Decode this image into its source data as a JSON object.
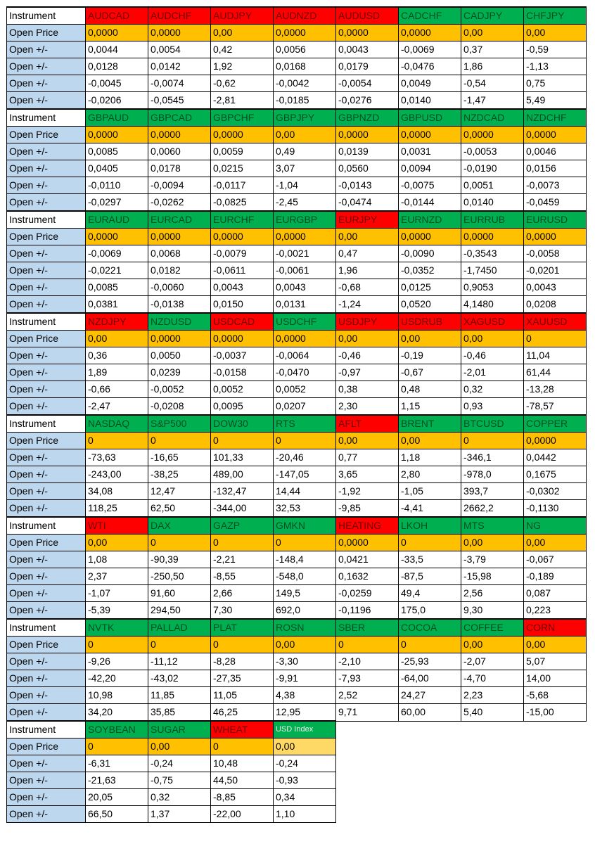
{
  "table": {
    "row_labels": {
      "instrument": "Instrument",
      "open_price": "Open Price",
      "open_change": "Open +/-"
    },
    "colors": {
      "up_fill": "#00B050",
      "down_fill": "#FF0000",
      "price_fill": "#FFC000",
      "price_fill_light": "#FFD966",
      "label_fill": "#BDD7EE",
      "border": "#000000"
    },
    "blocks": [
      {
        "instruments": [
          {
            "name": "AUDCAD",
            "trend": "down"
          },
          {
            "name": "AUDCHF",
            "trend": "down"
          },
          {
            "name": "AUDJPY",
            "trend": "down"
          },
          {
            "name": "AUDNZD",
            "trend": "down"
          },
          {
            "name": "AUDUSD",
            "trend": "down"
          },
          {
            "name": "CADCHF",
            "trend": "up"
          },
          {
            "name": "CADJPY",
            "trend": "up"
          },
          {
            "name": "CHFJPY",
            "trend": "up"
          }
        ],
        "open_prices": [
          "0,0000",
          "0,0000",
          "0,00",
          "0,0000",
          "0,0000",
          "0,0000",
          "0,00",
          "0,00"
        ],
        "changes": [
          [
            "0,0044",
            "0,0054",
            "0,42",
            "0,0056",
            "0,0043",
            "-0,0069",
            "0,37",
            "-0,59"
          ],
          [
            "0,0128",
            "0,0142",
            "1,92",
            "0,0168",
            "0,0179",
            "-0,0476",
            "1,86",
            "-1,13"
          ],
          [
            "-0,0045",
            "-0,0074",
            "-0,62",
            "-0,0042",
            "-0,0054",
            "0,0049",
            "-0,54",
            "0,75"
          ],
          [
            "-0,0206",
            "-0,0545",
            "-2,81",
            "-0,0185",
            "-0,0276",
            "0,0140",
            "-1,47",
            "5,49"
          ]
        ]
      },
      {
        "instruments": [
          {
            "name": "GBPAUD",
            "trend": "up"
          },
          {
            "name": "GBPCAD",
            "trend": "up"
          },
          {
            "name": "GBPCHF",
            "trend": "up"
          },
          {
            "name": "GBPJPY",
            "trend": "up"
          },
          {
            "name": "GBPNZD",
            "trend": "up"
          },
          {
            "name": "GBPUSD",
            "trend": "up"
          },
          {
            "name": "NZDCAD",
            "trend": "up"
          },
          {
            "name": "NZDCHF",
            "trend": "up"
          }
        ],
        "open_prices": [
          "0,0000",
          "0,0000",
          "0,0000",
          "0,00",
          "0,0000",
          "0,0000",
          "0,0000",
          "0,0000"
        ],
        "changes": [
          [
            "0,0085",
            "0,0060",
            "0,0059",
            "0,49",
            "0,0139",
            "0,0031",
            "-0,0053",
            "0,0046"
          ],
          [
            "0,0405",
            "0,0178",
            "0,0215",
            "3,07",
            "0,0560",
            "0,0094",
            "-0,0190",
            "0,0156"
          ],
          [
            "-0,0110",
            "-0,0094",
            "-0,0117",
            "-1,04",
            "-0,0143",
            "-0,0075",
            "0,0051",
            "-0,0073"
          ],
          [
            "-0,0297",
            "-0,0262",
            "-0,0825",
            "-2,45",
            "-0,0474",
            "-0,0144",
            "0,0140",
            "-0,0459"
          ]
        ]
      },
      {
        "instruments": [
          {
            "name": "EURAUD",
            "trend": "up"
          },
          {
            "name": "EURCAD",
            "trend": "up"
          },
          {
            "name": "EURCHF",
            "trend": "up"
          },
          {
            "name": "EURGBP",
            "trend": "up"
          },
          {
            "name": "EURJPY",
            "trend": "down"
          },
          {
            "name": "EURNZD",
            "trend": "up"
          },
          {
            "name": "EURRUB",
            "trend": "up"
          },
          {
            "name": "EURUSD",
            "trend": "up"
          }
        ],
        "open_prices": [
          "0,0000",
          "0,0000",
          "0,0000",
          "0,0000",
          "0,00",
          "0,0000",
          "0,0000",
          "0,0000"
        ],
        "changes": [
          [
            "-0,0069",
            "0,0068",
            "-0,0079",
            "-0,0021",
            "0,47",
            "-0,0090",
            "-0,3543",
            "-0,0058"
          ],
          [
            "-0,0221",
            "0,0182",
            "-0,0611",
            "-0,0061",
            "1,96",
            "-0,0352",
            "-1,7450",
            "-0,0201"
          ],
          [
            "0,0085",
            "-0,0060",
            "0,0043",
            "0,0043",
            "-0,68",
            "0,0125",
            "0,9053",
            "0,0043"
          ],
          [
            "0,0381",
            "-0,0138",
            "0,0150",
            "0,0131",
            "-1,24",
            "0,0520",
            "4,1480",
            "0,0208"
          ]
        ]
      },
      {
        "instruments": [
          {
            "name": "NZDJPY",
            "trend": "down"
          },
          {
            "name": "NZDUSD",
            "trend": "up"
          },
          {
            "name": "USDCAD",
            "trend": "down"
          },
          {
            "name": "USDCHF",
            "trend": "up"
          },
          {
            "name": "USDJPY",
            "trend": "down"
          },
          {
            "name": "USDRUB",
            "trend": "down"
          },
          {
            "name": "XAGUSD",
            "trend": "down"
          },
          {
            "name": "XAUUSD",
            "trend": "down"
          }
        ],
        "open_prices": [
          "0,00",
          "0,0000",
          "0,0000",
          "0,0000",
          "0,00",
          "0,00",
          "0,00",
          "0"
        ],
        "changes": [
          [
            "0,36",
            "0,0050",
            "-0,0037",
            "-0,0064",
            "-0,46",
            "-0,19",
            "-0,46",
            "11,04"
          ],
          [
            "1,89",
            "0,0239",
            "-0,0158",
            "-0,0470",
            "-0,97",
            "-0,67",
            "-2,01",
            "61,44"
          ],
          [
            "-0,66",
            "-0,0052",
            "0,0052",
            "0,0052",
            "0,38",
            "0,48",
            "0,32",
            "-13,28"
          ],
          [
            "-2,47",
            "-0,0208",
            "0,0095",
            "0,0207",
            "2,30",
            "1,15",
            "0,93",
            "-78,57"
          ]
        ]
      },
      {
        "instruments": [
          {
            "name": "NASDAQ",
            "trend": "up"
          },
          {
            "name": "S&P500",
            "trend": "up"
          },
          {
            "name": "DOW30",
            "trend": "up"
          },
          {
            "name": "RTS",
            "trend": "up"
          },
          {
            "name": "AFLT",
            "trend": "down"
          },
          {
            "name": "BRENT",
            "trend": "up"
          },
          {
            "name": "BTCUSD",
            "trend": "up"
          },
          {
            "name": "COPPER",
            "trend": "up"
          }
        ],
        "open_prices": [
          "0",
          "0",
          "0",
          "0",
          "0,00",
          "0,00",
          "0",
          "0,0000"
        ],
        "changes": [
          [
            "-73,63",
            "-16,65",
            "101,33",
            "-20,46",
            "0,77",
            "1,18",
            "-346,1",
            "0,0442"
          ],
          [
            "-243,00",
            "-38,25",
            "489,00",
            "-147,05",
            "3,65",
            "2,80",
            "-978,0",
            "0,1675"
          ],
          [
            "34,08",
            "12,47",
            "-132,47",
            "14,44",
            "-1,92",
            "-1,05",
            "393,7",
            "-0,0302"
          ],
          [
            "118,25",
            "62,50",
            "-344,00",
            "32,53",
            "-9,85",
            "-4,41",
            "2662,2",
            "-0,1130"
          ]
        ]
      },
      {
        "instruments": [
          {
            "name": "WTI",
            "trend": "down"
          },
          {
            "name": "DAX",
            "trend": "up"
          },
          {
            "name": "GAZP",
            "trend": "up"
          },
          {
            "name": "GMKN",
            "trend": "up"
          },
          {
            "name": "HEATING",
            "trend": "down"
          },
          {
            "name": "LKOH",
            "trend": "up"
          },
          {
            "name": "MTS",
            "trend": "up"
          },
          {
            "name": "NG",
            "trend": "up"
          }
        ],
        "open_prices": [
          "0,00",
          "0",
          "0",
          "0",
          "0,0000",
          "0",
          "0,00",
          "0,00"
        ],
        "changes": [
          [
            "1,08",
            "-90,39",
            "-2,21",
            "-148,4",
            "0,0421",
            "-33,5",
            "-3,79",
            "-0,067"
          ],
          [
            "2,37",
            "-250,50",
            "-8,55",
            "-548,0",
            "0,1632",
            "-87,5",
            "-15,98",
            "-0,189"
          ],
          [
            "-1,07",
            "91,60",
            "2,66",
            "149,5",
            "-0,0259",
            "49,4",
            "2,56",
            "0,087"
          ],
          [
            "-5,39",
            "294,50",
            "7,30",
            "692,0",
            "-0,1196",
            "175,0",
            "9,30",
            "0,223"
          ]
        ]
      },
      {
        "instruments": [
          {
            "name": "NVTK",
            "trend": "up"
          },
          {
            "name": "PALLAD",
            "trend": "up"
          },
          {
            "name": "PLAT",
            "trend": "up"
          },
          {
            "name": "ROSN",
            "trend": "up"
          },
          {
            "name": "SBER",
            "trend": "up"
          },
          {
            "name": "COCOA",
            "trend": "up"
          },
          {
            "name": "COFFEE",
            "trend": "up"
          },
          {
            "name": "CORN",
            "trend": "down"
          }
        ],
        "open_prices": [
          "0",
          "0",
          "0",
          "0,00",
          "0",
          "0",
          "0,00",
          "0,00"
        ],
        "changes": [
          [
            "-9,26",
            "-11,12",
            "-8,28",
            "-3,30",
            "-2,10",
            "-25,93",
            "-2,07",
            "5,07"
          ],
          [
            "-42,20",
            "-43,02",
            "-27,35",
            "-9,91",
            "-7,93",
            "-64,00",
            "-4,70",
            "14,00"
          ],
          [
            "10,98",
            "11,85",
            "11,05",
            "4,38",
            "2,52",
            "24,27",
            "2,23",
            "-5,68"
          ],
          [
            "34,20",
            "35,85",
            "46,25",
            "12,95",
            "9,71",
            "60,00",
            "5,40",
            "-15,00"
          ]
        ]
      },
      {
        "instruments": [
          {
            "name": "SOYBEAN",
            "trend": "up"
          },
          {
            "name": "SUGAR",
            "trend": "up"
          },
          {
            "name": "WHEAT",
            "trend": "down"
          },
          {
            "name": "USD Index",
            "trend": "up",
            "style": "index"
          }
        ],
        "open_prices": [
          "0",
          "0,00",
          "0",
          "0,00"
        ],
        "light_price_cols": [
          3
        ],
        "changes": [
          [
            "-6,31",
            "-0,24",
            "10,48",
            "-0,24"
          ],
          [
            "-21,63",
            "-0,75",
            "44,50",
            "-0,93"
          ],
          [
            "20,05",
            "0,32",
            "-8,85",
            "0,34"
          ],
          [
            "66,50",
            "1,37",
            "-22,00",
            "1,10"
          ]
        ]
      }
    ]
  }
}
